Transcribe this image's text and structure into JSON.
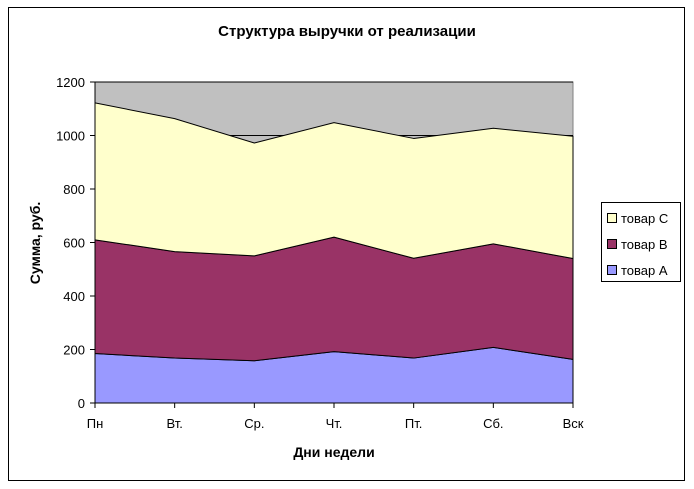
{
  "chart_data": {
    "type": "area",
    "stacked": true,
    "title": "Структура выручки от реализации",
    "xlabel": "Дни недели",
    "ylabel": "Сумма, руб.",
    "categories": [
      "Пн",
      "Вт.",
      "Ср.",
      "Чт.",
      "Пт.",
      "Сб.",
      "Вск"
    ],
    "ylim": [
      0,
      1200
    ],
    "yticks": [
      "0",
      "200",
      "400",
      "600",
      "800",
      "1000",
      "1200"
    ],
    "grid": "horizontal",
    "legend_position": "right",
    "plot_background": "#C0C0C0",
    "series": [
      {
        "name": "товар A",
        "color": "#9999FF",
        "values": [
          185,
          168,
          158,
          192,
          168,
          208,
          163
        ]
      },
      {
        "name": "товар B",
        "color": "#993366",
        "values": [
          425,
          398,
          392,
          428,
          373,
          387,
          377
        ]
      },
      {
        "name": "товар C",
        "color": "#FFFFCC",
        "values": [
          512,
          497,
          422,
          428,
          448,
          432,
          457
        ]
      }
    ]
  }
}
